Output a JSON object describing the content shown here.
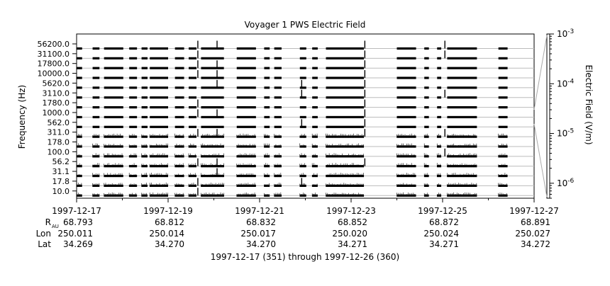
{
  "chart_data": {
    "type": "line",
    "title": "Voyager 1 PWS Electric Field",
    "ylabel": "Frequency (Hz)",
    "right_ylabel": "Electric Field (V/m)",
    "channel_labels": [
      "56200.0",
      "31100.0",
      "17800.0",
      "10000.0",
      "5620.0",
      "3110.0",
      "1780.0",
      "1000.0",
      "562.0",
      "311.0",
      "178.0",
      "100.0",
      "56.2",
      "31.1",
      "17.8",
      "10.0"
    ],
    "channels_hz": [
      56200,
      31100,
      17800,
      10000,
      5620,
      3110,
      1780,
      1000,
      562,
      311,
      178,
      100,
      56.2,
      31.1,
      17.8,
      10.0
    ],
    "x_range_days": [
      "1997-12-17",
      "1997-12-27"
    ],
    "x_ticks": [
      "1997-12-17",
      "1997-12-19",
      "1997-12-21",
      "1997-12-23",
      "1997-12-25",
      "1997-12-27"
    ],
    "colorbar": {
      "scale": "log",
      "range": [
        5e-07,
        0.001
      ],
      "ticks": [
        {
          "value": 0.001,
          "base": "10",
          "exp": "-3"
        },
        {
          "value": 0.0001,
          "base": "10",
          "exp": "-4"
        },
        {
          "value": 1e-05,
          "base": "10",
          "exp": "-5"
        },
        {
          "value": 1e-06,
          "base": "10",
          "exp": "-6"
        }
      ]
    },
    "data_segments_days": [
      [
        0.0,
        0.12
      ],
      [
        0.35,
        0.5
      ],
      [
        0.6,
        1.02
      ],
      [
        1.15,
        1.32
      ],
      [
        1.42,
        1.55
      ],
      [
        1.6,
        2.0
      ],
      [
        2.15,
        2.35
      ],
      [
        2.45,
        2.62
      ],
      [
        2.72,
        3.22
      ],
      [
        3.5,
        3.92
      ],
      [
        4.1,
        4.22
      ],
      [
        4.32,
        4.48
      ],
      [
        4.88,
        5.02
      ],
      [
        5.15,
        5.27
      ],
      [
        5.45,
        6.28
      ],
      [
        7.0,
        7.42
      ],
      [
        7.6,
        7.7
      ],
      [
        7.88,
        7.97
      ],
      [
        8.1,
        8.75
      ],
      [
        9.22,
        9.42
      ]
    ],
    "events": [
      {
        "day": 2.65,
        "bands": [
          0,
          1,
          2,
          3,
          6,
          7,
          9,
          12,
          14,
          15
        ]
      },
      {
        "day": 3.07,
        "bands": [
          0,
          2,
          3,
          4,
          7,
          9,
          12,
          13
        ]
      },
      {
        "day": 4.92,
        "bands": [
          4,
          5,
          8,
          14
        ]
      },
      {
        "day": 6.3,
        "bands": [
          0,
          1,
          2,
          3,
          4,
          5,
          6,
          7,
          8,
          9,
          12
        ]
      },
      {
        "day": 8.05,
        "bands": [
          0,
          1,
          5,
          9,
          11
        ]
      }
    ],
    "grid": false
  },
  "ephemeris": {
    "rows": [
      {
        "label": "R",
        "sub": "AU",
        "values": [
          "68.793",
          "68.812",
          "68.832",
          "68.852",
          "68.872",
          "68.891"
        ]
      },
      {
        "label": "Lon",
        "sub": "",
        "values": [
          "250.011",
          "250.014",
          "250.017",
          "250.020",
          "250.024",
          "250.027"
        ]
      },
      {
        "label": "Lat",
        "sub": "",
        "values": [
          "34.269",
          "34.270",
          "34.270",
          "34.271",
          "34.271",
          "34.272"
        ]
      }
    ]
  },
  "footer": "1997-12-17 (351) through 1997-12-26 (360)"
}
